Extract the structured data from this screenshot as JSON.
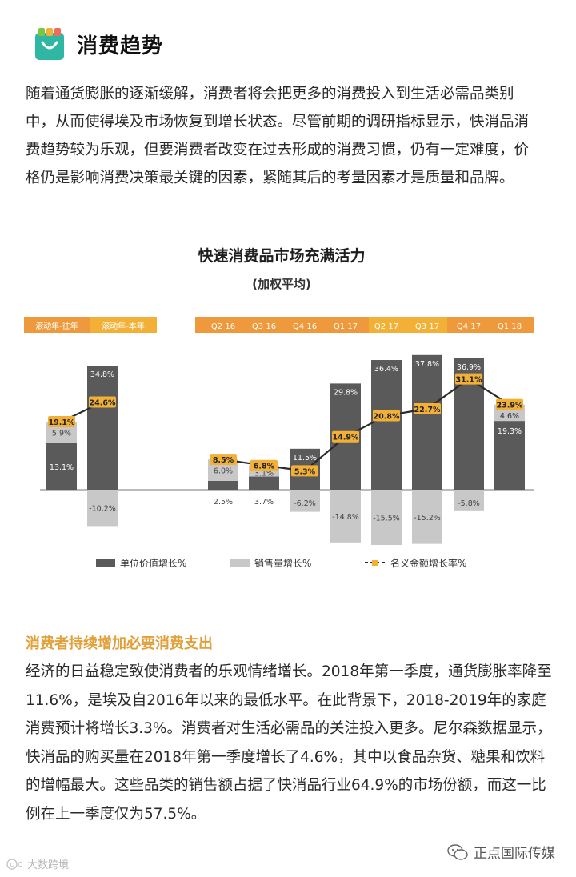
{
  "header": {
    "title": "消费趋势",
    "icon": "shopping-bag-icon",
    "icon_color": "#2fb7a4"
  },
  "intro_text": "随着通货膨胀的逐渐缓解，消费者将会把更多的消费投入到生活必需品类别中，从而使得埃及市场恢复到增长状态。尽管前期的调研指标显示，快消品消费趋势较为乐观，但要消费者改变在过去形成的消费习惯，仍有一定难度，价格仍是影响消费决策最关键的因素，紧随其后的考量因素才是质量和品牌。",
  "colors": {
    "dark_bar": "#5a5a5a",
    "light_bar": "#c8c8c8",
    "line": "#2b2b2b",
    "marker": "#f2b136",
    "band": "#f2b136",
    "band_dark": "#ee9a3c",
    "section_title": "#e2a03a"
  },
  "chart_data": {
    "type": "bar",
    "title": "快速消费品市场充满活力",
    "subtitle": "(加权平均)",
    "header_groups": [
      "滚动年-往年",
      "滚动年-本年"
    ],
    "categories": [
      "滚动年-往年",
      "滚动年-本年",
      "Q2 16",
      "Q3 16",
      "Q4 16",
      "Q1 17",
      "Q2 17",
      "Q3 17",
      "Q4 17",
      "Q1 18"
    ],
    "series": [
      {
        "name": "单位价值增长%",
        "type": "bar",
        "values": [
          13.1,
          34.8,
          2.5,
          3.7,
          11.5,
          29.8,
          36.4,
          37.8,
          36.9,
          19.3
        ],
        "labels": [
          "13.1%",
          "34.8%",
          "2.5%",
          "3.7%",
          "11.5%",
          "29.8%",
          "36.4%",
          "37.8%",
          "36.9%",
          "19.3%"
        ]
      },
      {
        "name": "销售量增长%",
        "type": "bar",
        "values": [
          5.9,
          -10.2,
          6.0,
          3.1,
          -6.2,
          -14.8,
          -15.5,
          -15.2,
          -5.8,
          4.6
        ],
        "labels": [
          "5.9%",
          "-10.2%",
          "6.0%",
          "3.1%",
          "-6.2%",
          "-14.8%",
          "-15.5%",
          "-15.2%",
          "-5.8%",
          "4.6%"
        ]
      },
      {
        "name": "名义金额增长率%",
        "type": "line",
        "values": [
          19.1,
          24.6,
          8.5,
          6.8,
          5.3,
          14.9,
          20.8,
          22.7,
          31.1,
          23.9
        ],
        "labels": [
          "19.1%",
          "24.6%",
          "8.5%",
          "6.8%",
          "5.3%",
          "14.9%",
          "20.8%",
          "22.7%",
          "31.1%",
          "23.9%"
        ]
      }
    ],
    "legend_position": "bottom",
    "grid": false
  },
  "section_title": "消费者持续增加必要消费支出",
  "body_text": "经济的日益稳定致使消费者的乐观情绪增长。2018年第一季度，通货膨胀率降至11.6%，是埃及自2016年以来的最低水平。在此背景下，2018-2019年的家庭消费预计将增长3.3%。消费者对生活必需品的关注投入更多。尼尔森数据显示，快消品的购买量在2018年第一季度增长了4.6%，其中以食品杂货、糖果和饮料的增幅最大。这些品类的销售额占据了快消品行业64.9%的市场份额，而这一比例在上一季度仅为57.5%。",
  "footer": {
    "left_text": "大数跨境",
    "right_text": "正点国际传媒",
    "right_icon": "wechat-icon"
  }
}
